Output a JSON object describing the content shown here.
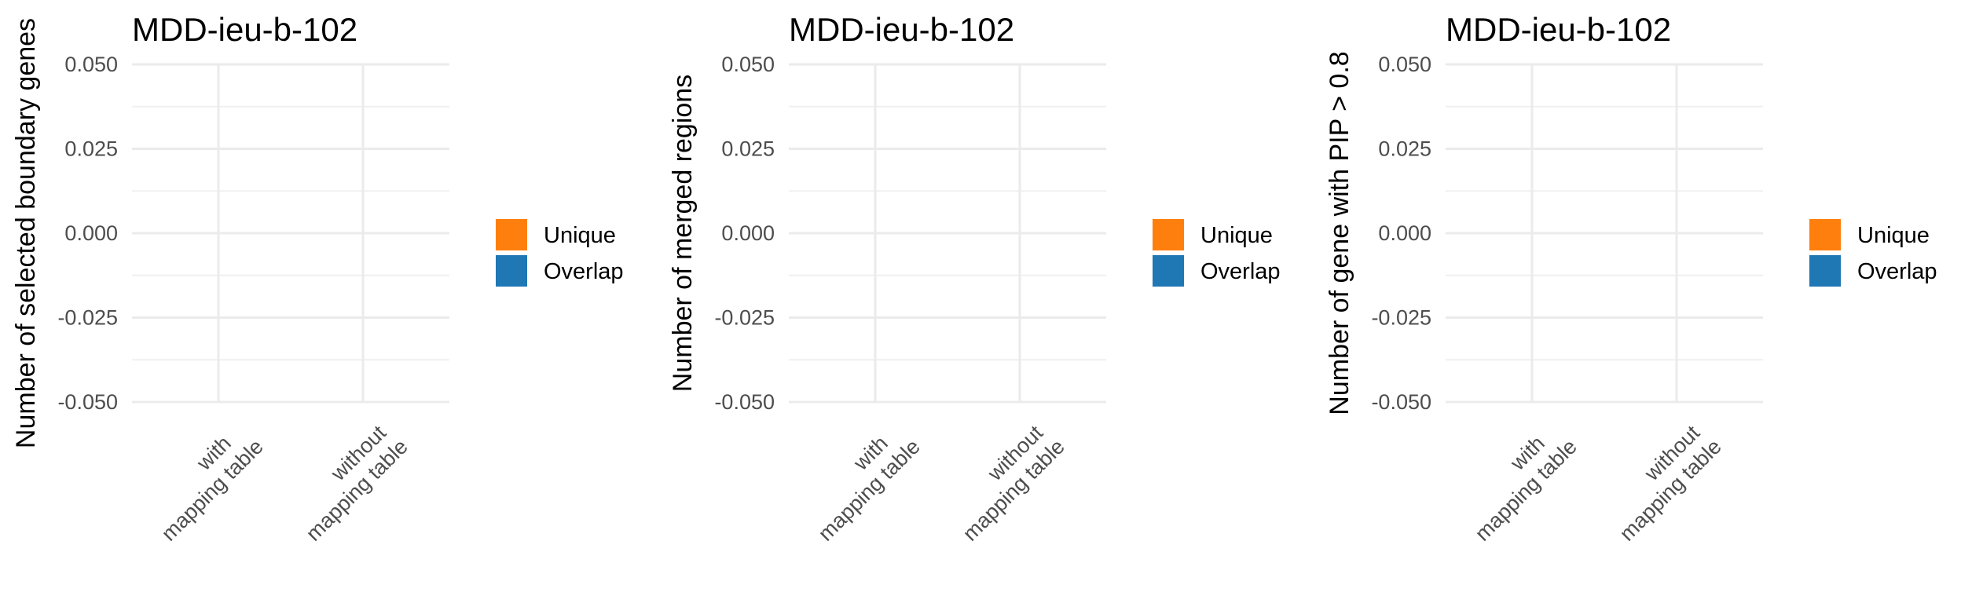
{
  "legend": {
    "entries": [
      {
        "label": "Unique",
        "color": "#ff7f0e"
      },
      {
        "label": "Overlap",
        "color": "#1f77b4"
      }
    ]
  },
  "chart_data": [
    {
      "type": "bar",
      "title": "MDD-ieu-b-102",
      "xlabel": "",
      "ylabel": "Number of selected boundary genes",
      "categories": [
        "with\nmapping table",
        "without\nmapping table"
      ],
      "ylim": [
        -0.05,
        0.05
      ],
      "yticks": [
        "0.050",
        "0.025",
        "0.000",
        "-0.025",
        "-0.050"
      ],
      "grid": true,
      "legend_position": "right",
      "series": [
        {
          "name": "Unique",
          "values": [
            0,
            0
          ]
        },
        {
          "name": "Overlap",
          "values": [
            0,
            0
          ]
        }
      ]
    },
    {
      "type": "bar",
      "title": "MDD-ieu-b-102",
      "xlabel": "",
      "ylabel": "Number of merged regions",
      "categories": [
        "with\nmapping table",
        "without\nmapping table"
      ],
      "ylim": [
        -0.05,
        0.05
      ],
      "yticks": [
        "0.050",
        "0.025",
        "0.000",
        "-0.025",
        "-0.050"
      ],
      "grid": true,
      "legend_position": "right",
      "series": [
        {
          "name": "Unique",
          "values": [
            0,
            0
          ]
        },
        {
          "name": "Overlap",
          "values": [
            0,
            0
          ]
        }
      ]
    },
    {
      "type": "bar",
      "title": "MDD-ieu-b-102",
      "xlabel": "",
      "ylabel": "Number of gene with PIP > 0.8",
      "categories": [
        "with\nmapping table",
        "without\nmapping table"
      ],
      "ylim": [
        -0.05,
        0.05
      ],
      "yticks": [
        "0.050",
        "0.025",
        "0.000",
        "-0.025",
        "-0.050"
      ],
      "grid": true,
      "legend_position": "right",
      "series": [
        {
          "name": "Unique",
          "values": [
            0,
            0
          ]
        },
        {
          "name": "Overlap",
          "values": [
            0,
            0
          ]
        }
      ]
    }
  ]
}
